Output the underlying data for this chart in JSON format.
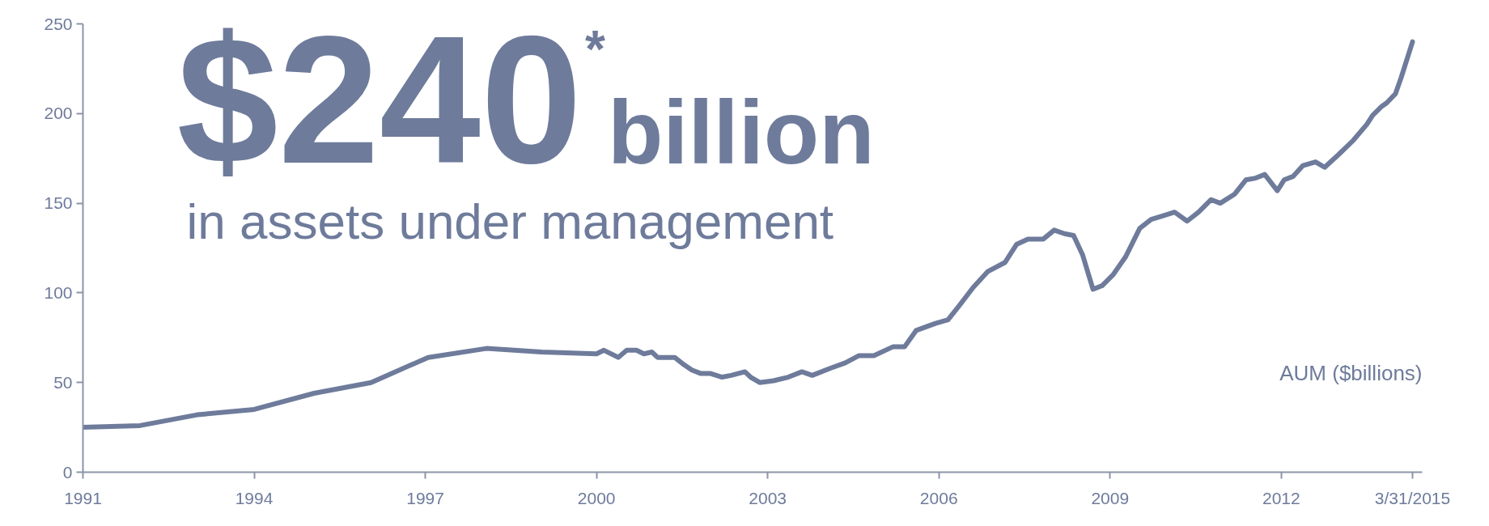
{
  "chart_data": {
    "type": "line",
    "title": "$240$^{*}$ billion",
    "subtitle": "in assets under management",
    "annotations": [
      "AUM ($billions)"
    ],
    "x": [
      1991,
      1992.0,
      1993.0,
      1994.0,
      1995.05,
      1996.05,
      1997.05,
      1998.07,
      1999.04,
      2000.0,
      2000.13,
      2000.38,
      2000.53,
      2000.7,
      2000.83,
      2000.97,
      2001.07,
      2001.37,
      2001.53,
      2001.67,
      2001.83,
      2002.0,
      2002.2,
      2002.36,
      2002.6,
      2002.7,
      2002.86,
      2003.1,
      2003.36,
      2003.6,
      2003.78,
      2004.1,
      2004.36,
      2004.6,
      2004.86,
      2005.2,
      2005.4,
      2005.6,
      2005.94,
      2006.16,
      2006.36,
      2006.6,
      2006.86,
      2007.16,
      2007.36,
      2007.56,
      2007.83,
      2008.02,
      2008.2,
      2008.36,
      2008.52,
      2008.7,
      2008.86,
      2009.05,
      2009.27,
      2009.52,
      2009.72,
      2009.93,
      2010.13,
      2010.35,
      2010.55,
      2010.77,
      2010.93,
      2011.18,
      2011.38,
      2011.55,
      2011.71,
      2011.93,
      2012.05,
      2012.21,
      2012.38,
      2012.6,
      2012.76,
      2013.0,
      2013.26,
      2013.5,
      2013.6,
      2013.76,
      2013.85,
      2014.0,
      2014.1,
      2014.3
    ],
    "values": [
      25,
      26,
      32,
      35,
      44,
      50,
      64,
      69,
      67,
      66,
      68,
      64,
      68,
      68,
      66,
      67,
      64,
      64,
      60,
      57,
      55,
      55,
      53,
      54,
      56,
      53,
      50,
      51,
      53,
      56,
      54,
      58,
      61,
      65,
      65,
      70,
      70,
      79,
      83,
      85,
      93,
      103,
      112,
      117,
      127,
      130,
      130,
      135,
      133,
      132,
      121,
      102,
      104,
      110,
      120,
      136,
      141,
      143,
      145,
      140,
      145,
      152,
      150,
      155,
      163,
      164,
      166,
      157,
      163,
      165,
      171,
      173,
      170,
      177,
      185,
      194,
      199,
      204,
      206,
      211,
      220,
      240
    ],
    "color": "#6e7b9b",
    "xlim": [
      1991,
      2014.47
    ],
    "ylim": [
      0,
      250
    ],
    "xticks": [
      1991,
      1994,
      1997,
      2000,
      2003,
      2006,
      2009,
      2012,
      {
        "value": 2014.3,
        "label": "3/31/2015"
      }
    ],
    "yticks": [
      0,
      50,
      100,
      150,
      200,
      250
    ],
    "grid": false,
    "marker": "none",
    "line_style": "solid"
  }
}
